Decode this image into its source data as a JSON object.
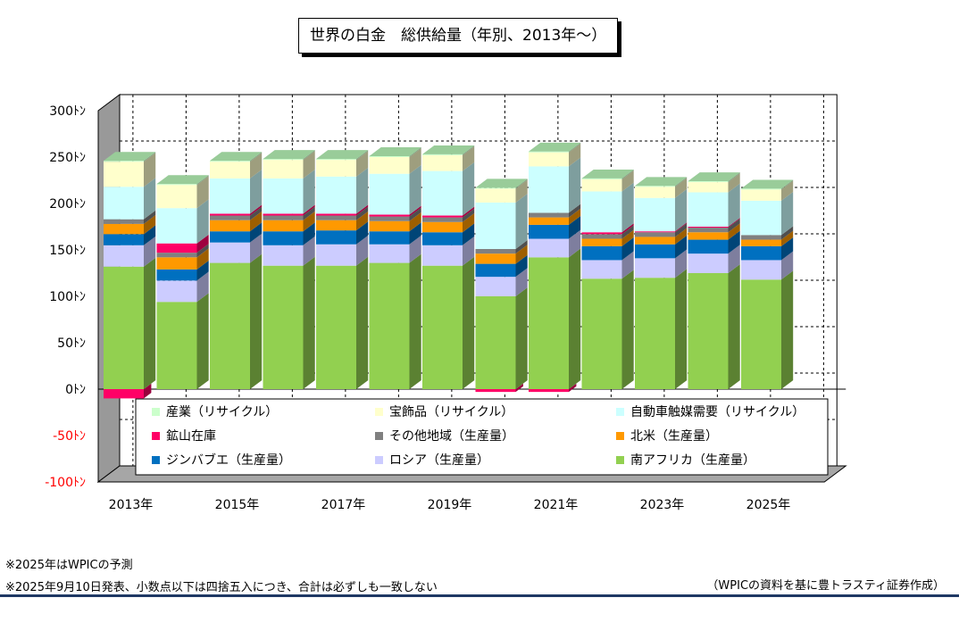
{
  "chart_data": {
    "type": "bar",
    "stacked": true,
    "title": "世界の白金　総供給量（年別、2013年～）",
    "unit_suffix": "ﾄﾝ",
    "ylim": [
      -100,
      300
    ],
    "yticks": [
      -100,
      -50,
      0,
      50,
      100,
      150,
      200,
      250,
      300
    ],
    "ytick_labels": [
      "-100ﾄﾝ",
      "-50ﾄﾝ",
      "0ﾄﾝ",
      "50ﾄﾝ",
      "100ﾄﾝ",
      "150ﾄﾝ",
      "200ﾄﾝ",
      "250ﾄﾝ",
      "300ﾄﾝ"
    ],
    "negative_tick_color": "#ff0000",
    "grid": "horizontal dashed",
    "legend_position": "inside-bottom",
    "categories": [
      "2013年",
      "2014年",
      "2015年",
      "2016年",
      "2017年",
      "2018年",
      "2019年",
      "2020年",
      "2021年",
      "2022年",
      "2023年",
      "2024年",
      "2025年"
    ],
    "x_tick_labels": [
      "2013年",
      "",
      "2015年",
      "",
      "2017年",
      "",
      "2019年",
      "",
      "2021年",
      "",
      "2023年",
      "",
      "2025年"
    ],
    "series": [
      {
        "name": "南アフリカ（生産量）",
        "color": "#92d050",
        "values": [
          132,
          94,
          136,
          133,
          133,
          136,
          133,
          100,
          142,
          119,
          120,
          125,
          118
        ]
      },
      {
        "name": "ロシア（生産量）",
        "color": "#ccccff",
        "values": [
          23,
          23,
          22,
          22,
          23,
          20,
          22,
          21,
          20,
          20,
          21,
          21,
          21
        ]
      },
      {
        "name": "ジンバブエ（生産量）",
        "color": "#0070c0",
        "values": [
          12,
          12,
          12,
          15,
          15,
          14,
          14,
          14,
          15,
          15,
          15,
          15,
          15
        ]
      },
      {
        "name": "北米（生産量）",
        "color": "#ff9900",
        "values": [
          11,
          13,
          12,
          12,
          11,
          11,
          11,
          11,
          8,
          8,
          8,
          8,
          7
        ]
      },
      {
        "name": "その他地域（生産量）",
        "color": "#808080",
        "values": [
          5,
          5,
          5,
          5,
          5,
          5,
          5,
          5,
          5,
          5,
          5,
          5,
          5
        ]
      },
      {
        "name": "鉱山在庫",
        "color": "#ff0066",
        "values": [
          -10,
          10,
          2,
          2,
          2,
          2,
          2,
          -3,
          -3,
          2,
          1,
          1,
          0
        ]
      },
      {
        "name": "自動車触媒需要（リサイクル）",
        "color": "#ccffff",
        "values": [
          35,
          38,
          38,
          38,
          40,
          44,
          48,
          50,
          50,
          44,
          36,
          37,
          37
        ]
      },
      {
        "name": "宝飾品（リサイクル）",
        "color": "#ffffcc",
        "values": [
          27,
          25,
          18,
          20,
          18,
          18,
          17,
          15,
          15,
          13,
          12,
          11,
          12
        ]
      },
      {
        "name": "産業（リサイクル）",
        "color": "#ccffcc",
        "values": [
          1,
          1,
          1,
          1,
          1,
          1,
          1,
          1,
          1,
          1,
          1,
          1,
          1
        ]
      }
    ]
  },
  "legend": {
    "items": [
      {
        "label": "産業（リサイクル）",
        "color": "#ccffcc"
      },
      {
        "label": "宝飾品（リサイクル）",
        "color": "#ffffcc"
      },
      {
        "label": "自動車触媒需要（リサイクル）",
        "color": "#ccffff"
      },
      {
        "label": "鉱山在庫",
        "color": "#ff0066"
      },
      {
        "label": "その他地域（生産量）",
        "color": "#808080"
      },
      {
        "label": "北米（生産量）",
        "color": "#ff9900"
      },
      {
        "label": "ジンバブエ（生産量）",
        "color": "#0070c0"
      },
      {
        "label": "ロシア（生産量）",
        "color": "#ccccff"
      },
      {
        "label": "南アフリカ（生産量）",
        "color": "#92d050"
      }
    ]
  },
  "notes": {
    "forecast": "※2025年はWPICの予測",
    "release": "※2025年9月10日発表、小数点以下は四捨五入につき、合計は必ずしも一致しない",
    "source": "（WPICの資料を基に豊トラスティ証券作成）"
  }
}
